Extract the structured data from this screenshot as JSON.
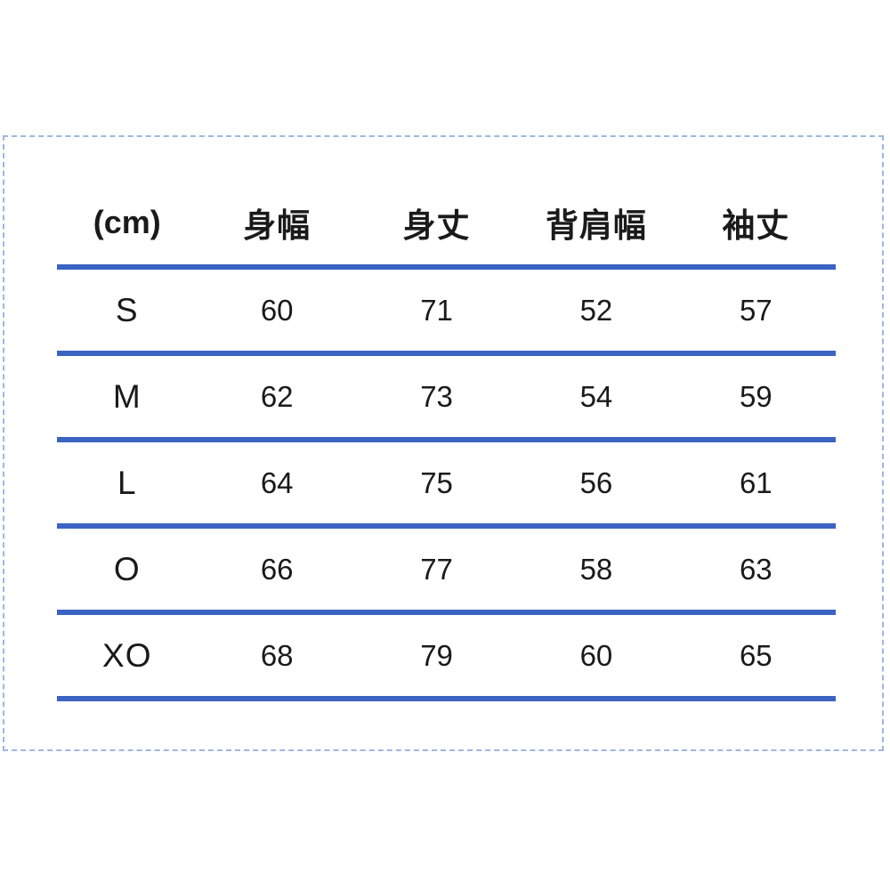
{
  "chart_data": {
    "type": "table",
    "title": "",
    "unit_label": "(cm)",
    "columns": [
      "身幅",
      "身丈",
      "背肩幅",
      "袖丈"
    ],
    "rows": [
      {
        "size": "S",
        "values": [
          60,
          71,
          52,
          57
        ]
      },
      {
        "size": "M",
        "values": [
          62,
          73,
          54,
          59
        ]
      },
      {
        "size": "L",
        "values": [
          64,
          75,
          56,
          61
        ]
      },
      {
        "size": "O",
        "values": [
          66,
          77,
          58,
          63
        ]
      },
      {
        "size": "XO",
        "values": [
          68,
          79,
          60,
          65
        ]
      }
    ]
  },
  "colors": {
    "divider_blue": "#3a63c2",
    "selection_border_blue": "#9fb6e0",
    "text": "#1a1a1a"
  }
}
